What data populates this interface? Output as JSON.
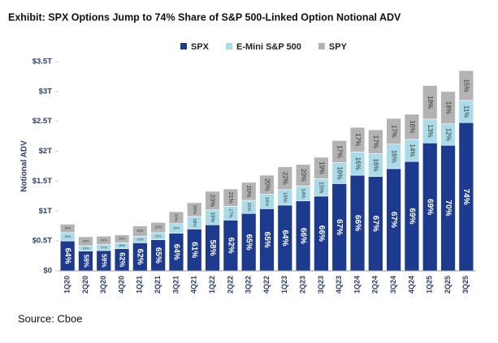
{
  "chart_data": {
    "type": "stacked_bar",
    "title": "Exhibit: SPX Options Jump to 74% Share of S&P 500-Linked Option Notional ADV",
    "y_label": "Notional ADV",
    "source": "Source: Cboe",
    "categories": [
      "1Q20",
      "2Q20",
      "3Q20",
      "4Q20",
      "1Q21",
      "2Q21",
      "3Q21",
      "4Q21",
      "1Q22",
      "2Q22",
      "3Q22",
      "4Q22",
      "1Q23",
      "2Q23",
      "3Q23",
      "4Q23",
      "1Q24",
      "2Q24",
      "3Q24",
      "4Q24",
      "1Q25",
      "2Q25",
      "3Q25"
    ],
    "series": [
      {
        "name": "SPX",
        "color": "#1c3b8f",
        "values": [
          0.5,
          0.33,
          0.34,
          0.37,
          0.47,
          0.52,
          0.63,
          0.7,
          0.77,
          0.85,
          0.96,
          1.04,
          1.1,
          1.17,
          1.25,
          1.46,
          1.6,
          1.58,
          1.71,
          1.83,
          2.14,
          2.1,
          2.48
        ],
        "share_labels": [
          "64%",
          "58%",
          "59%",
          "62%",
          "62%",
          "65%",
          "64%",
          "61%",
          "58%",
          "62%",
          "65%",
          "65%",
          "64%",
          "66%",
          "66%",
          "67%",
          "66%",
          "67%",
          "67%",
          "69%",
          "69%",
          "70%",
          "74%"
        ]
      },
      {
        "name": "E-Mini S&P 500",
        "color": "#a9dce8",
        "values": [
          0.14,
          0.09,
          0.1,
          0.1,
          0.11,
          0.12,
          0.16,
          0.21,
          0.25,
          0.23,
          0.22,
          0.24,
          0.26,
          0.25,
          0.29,
          0.35,
          0.39,
          0.38,
          0.41,
          0.37,
          0.4,
          0.36,
          0.37
        ],
        "share_labels": [
          "18%",
          "16%",
          "17%",
          "16%",
          "15%",
          "15%",
          "16%",
          "18%",
          "19%",
          "17%",
          "15%",
          "15%",
          "15%",
          "14%",
          "15%",
          "16%",
          "16%",
          "16%",
          "16%",
          "14%",
          "13%",
          "12%",
          "11%"
        ]
      },
      {
        "name": "SPY",
        "color": "#b3b3b3",
        "values": [
          0.14,
          0.15,
          0.14,
          0.13,
          0.17,
          0.17,
          0.2,
          0.23,
          0.31,
          0.29,
          0.3,
          0.32,
          0.38,
          0.36,
          0.36,
          0.37,
          0.41,
          0.4,
          0.43,
          0.42,
          0.56,
          0.54,
          0.5
        ],
        "share_labels": [
          "18%",
          "26%",
          "24%",
          "22%",
          "23%",
          "21%",
          "20%",
          "20%",
          "23%",
          "21%",
          "20%",
          "20%",
          "22%",
          "20%",
          "19%",
          "17%",
          "17%",
          "17%",
          "17%",
          "16%",
          "18%",
          "18%",
          "15%"
        ]
      }
    ],
    "ylim": [
      0,
      3.5
    ],
    "yticks": [
      {
        "value": 0,
        "label": "$0"
      },
      {
        "value": 0.5,
        "label": "$0.5T"
      },
      {
        "value": 1,
        "label": "$1T"
      },
      {
        "value": 1.5,
        "label": "$1.5T"
      },
      {
        "value": 2,
        "label": "$2T"
      },
      {
        "value": 2.5,
        "label": "$2.5T"
      },
      {
        "value": 3,
        "label": "$3T"
      },
      {
        "value": 3.5,
        "label": "$3.5T"
      }
    ],
    "legend": "top"
  }
}
